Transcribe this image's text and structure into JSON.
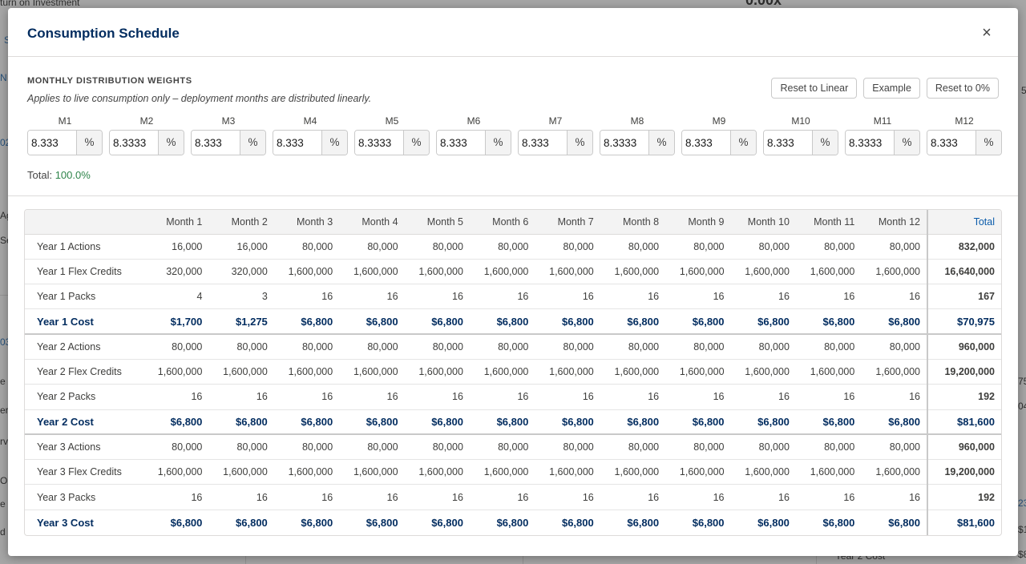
{
  "background": {
    "fragments": [
      "turn on Investment",
      "0.00x",
      "S",
      "N",
      "02",
      "Ag",
      "Se",
      "03",
      "e",
      "er",
      "rv",
      "OD",
      "e",
      "d",
      "75",
      "04",
      "23",
      "$1",
      "$8",
      "Year 2 Cost",
      "5"
    ]
  },
  "modal": {
    "title": "Consumption Schedule",
    "close_label": "×"
  },
  "weights": {
    "title": "MONTHLY DISTRIBUTION WEIGHTS",
    "subtitle": "Applies to live consumption only – deployment months are distributed linearly.",
    "buttons": [
      "Reset to Linear",
      "Example",
      "Reset to 0%"
    ],
    "months": [
      {
        "label": "M1",
        "value": "8.333"
      },
      {
        "label": "M2",
        "value": "8.3333"
      },
      {
        "label": "M3",
        "value": "8.333"
      },
      {
        "label": "M4",
        "value": "8.333"
      },
      {
        "label": "M5",
        "value": "8.3333"
      },
      {
        "label": "M6",
        "value": "8.333"
      },
      {
        "label": "M7",
        "value": "8.333"
      },
      {
        "label": "M8",
        "value": "8.3333"
      },
      {
        "label": "M9",
        "value": "8.333"
      },
      {
        "label": "M10",
        "value": "8.333"
      },
      {
        "label": "M11",
        "value": "8.3333"
      },
      {
        "label": "M12",
        "value": "8.333"
      }
    ],
    "unit": "%",
    "total_label": "Total:",
    "total_value": "100.0%"
  },
  "table": {
    "headers": [
      "",
      "Month 1",
      "Month 2",
      "Month 3",
      "Month 4",
      "Month 5",
      "Month 6",
      "Month 7",
      "Month 8",
      "Month 9",
      "Month 10",
      "Month 11",
      "Month 12",
      "Total"
    ],
    "rows": [
      {
        "label": "Year 1 Actions",
        "cost": false,
        "values": [
          "16,000",
          "16,000",
          "80,000",
          "80,000",
          "80,000",
          "80,000",
          "80,000",
          "80,000",
          "80,000",
          "80,000",
          "80,000",
          "80,000"
        ],
        "total": "832,000"
      },
      {
        "label": "Year 1 Flex Credits",
        "cost": false,
        "values": [
          "320,000",
          "320,000",
          "1,600,000",
          "1,600,000",
          "1,600,000",
          "1,600,000",
          "1,600,000",
          "1,600,000",
          "1,600,000",
          "1,600,000",
          "1,600,000",
          "1,600,000"
        ],
        "total": "16,640,000"
      },
      {
        "label": "Year 1 Packs",
        "cost": false,
        "values": [
          "4",
          "3",
          "16",
          "16",
          "16",
          "16",
          "16",
          "16",
          "16",
          "16",
          "16",
          "16"
        ],
        "total": "167"
      },
      {
        "label": "Year 1 Cost",
        "cost": true,
        "values": [
          "$1,700",
          "$1,275",
          "$6,800",
          "$6,800",
          "$6,800",
          "$6,800",
          "$6,800",
          "$6,800",
          "$6,800",
          "$6,800",
          "$6,800",
          "$6,800"
        ],
        "total": "$70,975"
      },
      {
        "label": "Year 2 Actions",
        "cost": false,
        "values": [
          "80,000",
          "80,000",
          "80,000",
          "80,000",
          "80,000",
          "80,000",
          "80,000",
          "80,000",
          "80,000",
          "80,000",
          "80,000",
          "80,000"
        ],
        "total": "960,000"
      },
      {
        "label": "Year 2 Flex Credits",
        "cost": false,
        "values": [
          "1,600,000",
          "1,600,000",
          "1,600,000",
          "1,600,000",
          "1,600,000",
          "1,600,000",
          "1,600,000",
          "1,600,000",
          "1,600,000",
          "1,600,000",
          "1,600,000",
          "1,600,000"
        ],
        "total": "19,200,000"
      },
      {
        "label": "Year 2 Packs",
        "cost": false,
        "values": [
          "16",
          "16",
          "16",
          "16",
          "16",
          "16",
          "16",
          "16",
          "16",
          "16",
          "16",
          "16"
        ],
        "total": "192"
      },
      {
        "label": "Year 2 Cost",
        "cost": true,
        "values": [
          "$6,800",
          "$6,800",
          "$6,800",
          "$6,800",
          "$6,800",
          "$6,800",
          "$6,800",
          "$6,800",
          "$6,800",
          "$6,800",
          "$6,800",
          "$6,800"
        ],
        "total": "$81,600"
      },
      {
        "label": "Year 3 Actions",
        "cost": false,
        "values": [
          "80,000",
          "80,000",
          "80,000",
          "80,000",
          "80,000",
          "80,000",
          "80,000",
          "80,000",
          "80,000",
          "80,000",
          "80,000",
          "80,000"
        ],
        "total": "960,000"
      },
      {
        "label": "Year 3 Flex Credits",
        "cost": false,
        "values": [
          "1,600,000",
          "1,600,000",
          "1,600,000",
          "1,600,000",
          "1,600,000",
          "1,600,000",
          "1,600,000",
          "1,600,000",
          "1,600,000",
          "1,600,000",
          "1,600,000",
          "1,600,000"
        ],
        "total": "19,200,000"
      },
      {
        "label": "Year 3 Packs",
        "cost": false,
        "values": [
          "16",
          "16",
          "16",
          "16",
          "16",
          "16",
          "16",
          "16",
          "16",
          "16",
          "16",
          "16"
        ],
        "total": "192"
      },
      {
        "label": "Year 3 Cost",
        "cost": true,
        "values": [
          "$6,800",
          "$6,800",
          "$6,800",
          "$6,800",
          "$6,800",
          "$6,800",
          "$6,800",
          "$6,800",
          "$6,800",
          "$6,800",
          "$6,800",
          "$6,800"
        ],
        "total": "$81,600"
      }
    ]
  }
}
